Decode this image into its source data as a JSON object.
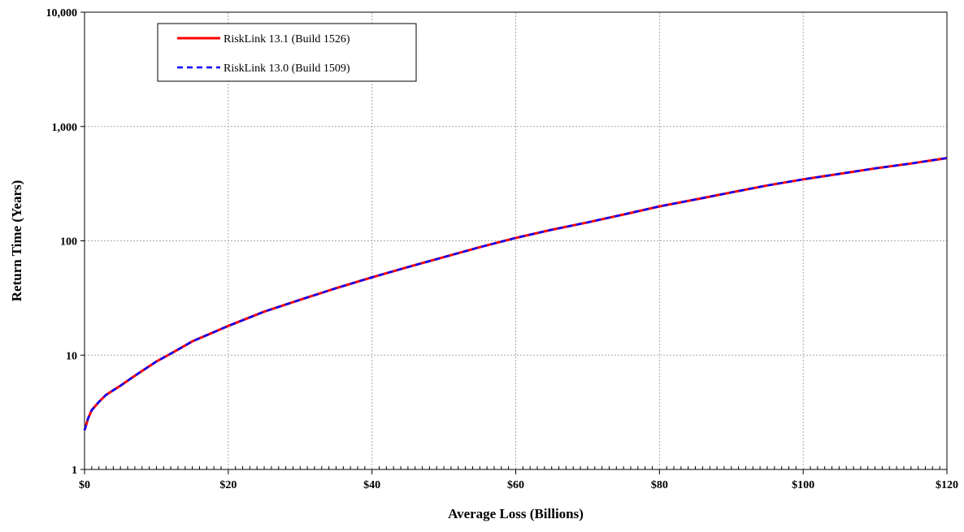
{
  "chart_data": {
    "type": "line",
    "title": "",
    "xlabel": "Average Loss (Billions)",
    "ylabel": "Return Time (Years)",
    "xlim": [
      0,
      120
    ],
    "ylim": [
      1,
      10000
    ],
    "y_scale": "log",
    "grid": true,
    "legend_position": "top-left",
    "x_ticks": [
      {
        "value": 0,
        "label": "$0"
      },
      {
        "value": 20,
        "label": "$20"
      },
      {
        "value": 40,
        "label": "$40"
      },
      {
        "value": 60,
        "label": "$60"
      },
      {
        "value": 80,
        "label": "$80"
      },
      {
        "value": 100,
        "label": "$100"
      },
      {
        "value": 120,
        "label": "$120"
      }
    ],
    "y_ticks": [
      {
        "value": 1,
        "label": "1"
      },
      {
        "value": 10,
        "label": "10"
      },
      {
        "value": 100,
        "label": "100"
      },
      {
        "value": 1000,
        "label": "1,000"
      },
      {
        "value": 10000,
        "label": "10,000"
      }
    ],
    "x": [
      0,
      0.5,
      1,
      2,
      3,
      5,
      7,
      10,
      12,
      15,
      20,
      25,
      30,
      35,
      40,
      45,
      50,
      55,
      60,
      65,
      70,
      75,
      80,
      85,
      90,
      95,
      100,
      105,
      110,
      115,
      120
    ],
    "series": [
      {
        "name": "RiskLink 13.1 (Build 1526)",
        "color": "#ff0000",
        "style": "solid",
        "values": [
          2.2,
          2.8,
          3.3,
          3.9,
          4.5,
          5.4,
          6.6,
          8.8,
          10.3,
          13.2,
          18,
          24,
          30.5,
          38.5,
          48,
          59,
          72,
          88,
          106,
          125,
          145,
          170,
          200,
          230,
          265,
          305,
          345,
          385,
          430,
          475,
          530
        ]
      },
      {
        "name": "RiskLink 13.0 (Build 1509)",
        "color": "#0000ff",
        "style": "dashed",
        "values": [
          2.2,
          2.8,
          3.3,
          3.9,
          4.5,
          5.4,
          6.6,
          8.8,
          10.3,
          13.2,
          18,
          24,
          30.5,
          38.5,
          48,
          59,
          72,
          88,
          106,
          125,
          145,
          170,
          200,
          230,
          265,
          305,
          345,
          385,
          430,
          475,
          530
        ]
      }
    ]
  }
}
